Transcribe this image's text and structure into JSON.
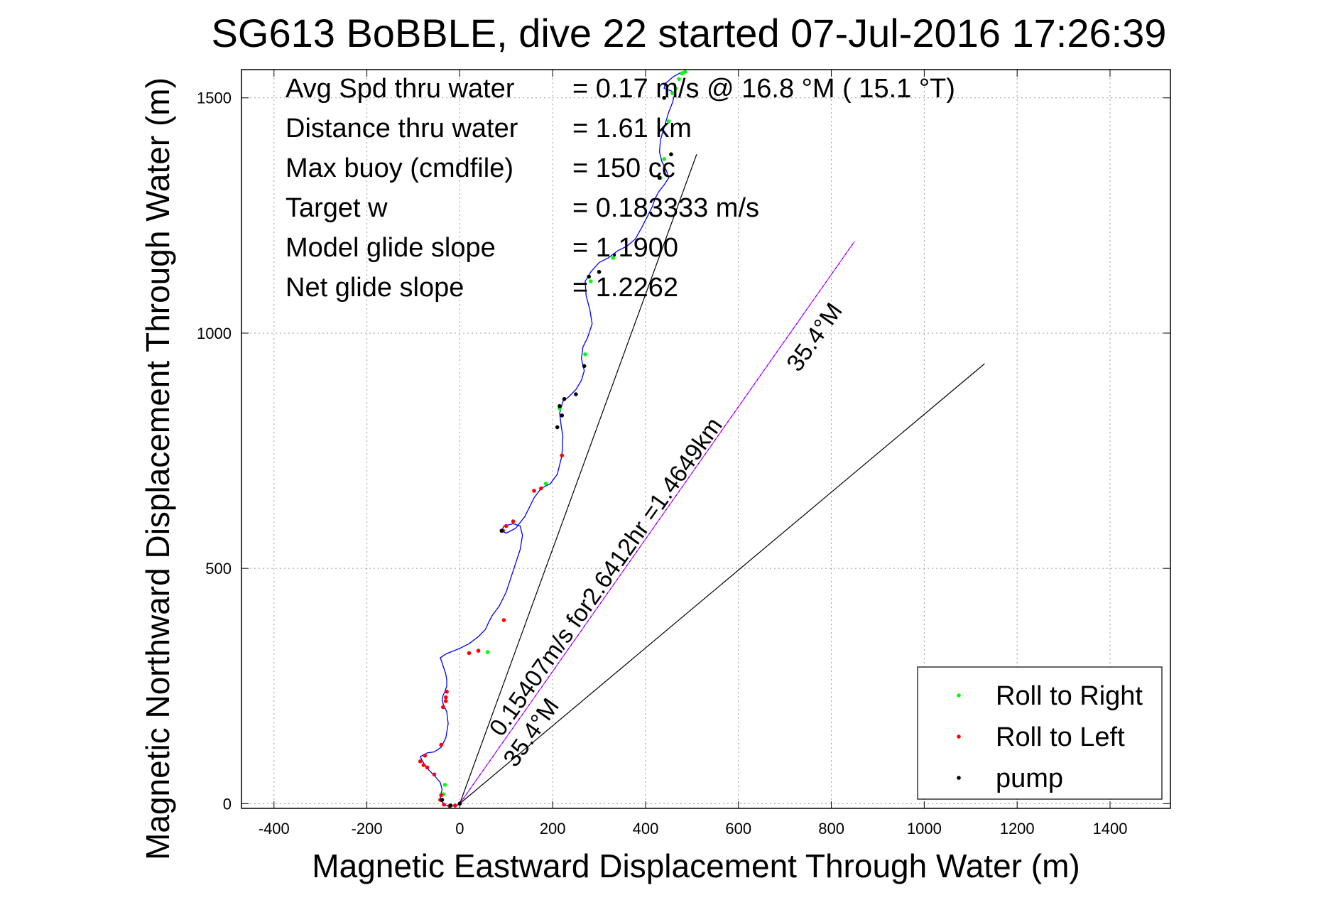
{
  "chart_data": {
    "type": "scatter",
    "title": "SG613 BoBBLE, dive 22 started 07-Jul-2016 17:26:39",
    "xlabel": "Magnetic Eastward Displacement Through Water (m)",
    "ylabel": "Magnetic Northward Displacement Through Water (m)",
    "xlim": [
      -470,
      1530
    ],
    "ylim": [
      -10,
      1560
    ],
    "xticks": [
      -400,
      -200,
      0,
      200,
      400,
      600,
      800,
      1000,
      1200,
      1400
    ],
    "yticks": [
      0,
      500,
      1000,
      1500
    ],
    "grid": true,
    "legend_position": "bottom-right",
    "info_lines": [
      {
        "label": "Avg Spd thru water",
        "value": "=  0.17 m/s @  16.8 °M ( 15.1 °T)"
      },
      {
        "label": "Distance thru water",
        "value": "=  1.61 km"
      },
      {
        "label": "Max buoy (cmdfile)",
        "value": "= 150 cc"
      },
      {
        "label": "Target w",
        "value": "= 0.183333 m/s"
      },
      {
        "label": "Model glide slope",
        "value": "= 1.1900"
      },
      {
        "label": "Net glide slope",
        "value": "= 1.2262"
      }
    ],
    "track": {
      "color": "#0000ff",
      "x": [
        0,
        -5,
        -18,
        -30,
        -40,
        -42,
        -38,
        -42,
        -55,
        -70,
        -80,
        -85,
        -70,
        -55,
        -40,
        -30,
        -25,
        -28,
        -35,
        -38,
        -36,
        -32,
        -28,
        -28,
        -30,
        -35,
        -40,
        -42,
        -30,
        0,
        20,
        40,
        55,
        62,
        70,
        85,
        100,
        110,
        120,
        130,
        135,
        130,
        115,
        95,
        90,
        100,
        120,
        140,
        160,
        175,
        195,
        210,
        220,
        222,
        218,
        215,
        222,
        235,
        250,
        262,
        268,
        262,
        265,
        275,
        285,
        280,
        272,
        270,
        282,
        300,
        320,
        340,
        360,
        378,
        392,
        405,
        415,
        420,
        428,
        440,
        450,
        445,
        435,
        430,
        432,
        438,
        444,
        450,
        458,
        463,
        455,
        440,
        442,
        460,
        478,
        485
      ],
      "y": [
        0,
        -3,
        -5,
        -3,
        5,
        15,
        30,
        45,
        60,
        75,
        90,
        100,
        108,
        110,
        120,
        140,
        170,
        195,
        210,
        220,
        230,
        238,
        250,
        262,
        275,
        290,
        305,
        310,
        318,
        330,
        340,
        355,
        370,
        385,
        400,
        420,
        450,
        480,
        510,
        540,
        570,
        590,
        595,
        590,
        580,
        575,
        585,
        610,
        650,
        670,
        680,
        700,
        740,
        780,
        805,
        830,
        855,
        865,
        880,
        900,
        920,
        945,
        970,
        990,
        1020,
        1050,
        1080,
        1110,
        1130,
        1150,
        1160,
        1175,
        1185,
        1200,
        1225,
        1250,
        1270,
        1285,
        1300,
        1315,
        1330,
        1345,
        1365,
        1385,
        1410,
        1430,
        1450,
        1470,
        1490,
        1510,
        1515,
        1520,
        1530,
        1545,
        1555,
        1555
      ]
    },
    "markers": [
      {
        "name": "Roll to Right",
        "color": "#00ff00",
        "x": [
          -35,
          -32,
          60,
          185,
          215,
          270,
          282,
          330,
          440,
          432,
          450,
          458,
          465,
          472,
          478,
          485
        ],
        "y": [
          20,
          40,
          322,
          680,
          840,
          955,
          1110,
          1160,
          1370,
          1330,
          1450,
          1510,
          1520,
          1540,
          1552,
          1555
        ]
      },
      {
        "name": "Roll to Left",
        "color": "#ff0000",
        "x": [
          0,
          -10,
          -22,
          -34,
          -42,
          -40,
          -55,
          -70,
          -78,
          -85,
          -75,
          -40,
          -36,
          -30,
          -28,
          -30,
          20,
          40,
          95,
          93,
          100,
          115,
          160,
          175,
          220
        ],
        "y": [
          0,
          -4,
          -5,
          -2,
          8,
          18,
          62,
          77,
          82,
          90,
          102,
          125,
          205,
          218,
          238,
          226,
          320,
          325,
          390,
          580,
          590,
          600,
          665,
          670,
          740
        ]
      },
      {
        "name": "pump",
        "color": "#000000",
        "x": [
          -20,
          -38,
          0,
          90,
          210,
          220,
          215,
          225,
          250,
          268,
          278,
          300,
          440,
          430,
          455
        ],
        "y": [
          -4,
          8,
          0,
          580,
          800,
          825,
          845,
          860,
          870,
          930,
          1120,
          1130,
          1500,
          1330,
          1380
        ]
      }
    ],
    "lines": [
      {
        "color": "#000000",
        "x": [
          0,
          510
        ],
        "y": [
          0,
          1380
        ]
      },
      {
        "color": "#000000",
        "x": [
          0,
          1130
        ],
        "y": [
          0,
          935
        ]
      },
      {
        "color": "#ff00ff",
        "x": [
          0,
          850
        ],
        "y": [
          0,
          1195
        ]
      },
      {
        "color": "#0000ff",
        "x": [
          0,
          850
        ],
        "y": [
          0,
          1195
        ],
        "dashed": true
      }
    ],
    "annotations": [
      {
        "text": "0.15407m/s for2.6412hr =1.4649km",
        "x": 90,
        "y": 140,
        "angle_deg": -54.7
      },
      {
        "text": "35.4°M",
        "x": 730,
        "y": 915,
        "angle_deg": -54.7
      },
      {
        "text": "35.4°M",
        "x": 120,
        "y": 75,
        "angle_deg": -54.7
      }
    ]
  }
}
